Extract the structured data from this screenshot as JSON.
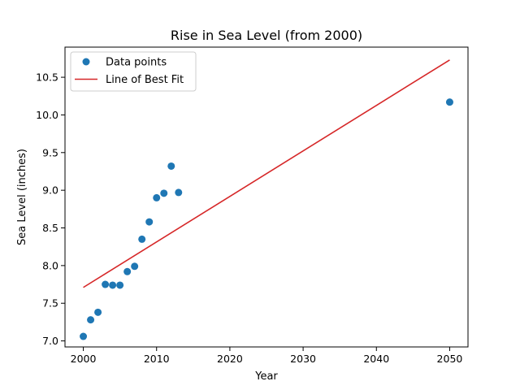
{
  "chart_data": {
    "type": "scatter",
    "title": "Rise in Sea Level (from 2000)",
    "xlabel": "Year",
    "ylabel": "Sea Level (inches)",
    "xlim": [
      1997.5,
      2052.5
    ],
    "ylim": [
      6.92,
      10.9
    ],
    "xticks": [
      2000,
      2010,
      2020,
      2030,
      2040,
      2050
    ],
    "yticks": [
      7.0,
      7.5,
      8.0,
      8.5,
      9.0,
      9.5,
      10.0,
      10.5
    ],
    "xtick_labels": [
      "2000",
      "2010",
      "2020",
      "2030",
      "2040",
      "2050"
    ],
    "ytick_labels": [
      "7.0",
      "7.5",
      "8.0",
      "8.5",
      "9.0",
      "9.5",
      "10.0",
      "10.5"
    ],
    "grid": false,
    "legend_position": "top-left",
    "series": [
      {
        "name": "Data points",
        "kind": "scatter",
        "color": "#1f77b4",
        "x": [
          2000,
          2001,
          2002,
          2003,
          2004,
          2005,
          2006,
          2007,
          2008,
          2009,
          2010,
          2011,
          2012,
          2013,
          2050
        ],
        "y": [
          7.06,
          7.28,
          7.38,
          7.75,
          7.74,
          7.74,
          7.92,
          7.99,
          8.35,
          8.58,
          8.9,
          8.96,
          9.32,
          8.97,
          10.17
        ]
      },
      {
        "name": "Line of Best Fit",
        "kind": "line",
        "color": "#d62728",
        "x": [
          2000,
          2050
        ],
        "y": [
          7.71,
          10.73
        ]
      }
    ]
  }
}
